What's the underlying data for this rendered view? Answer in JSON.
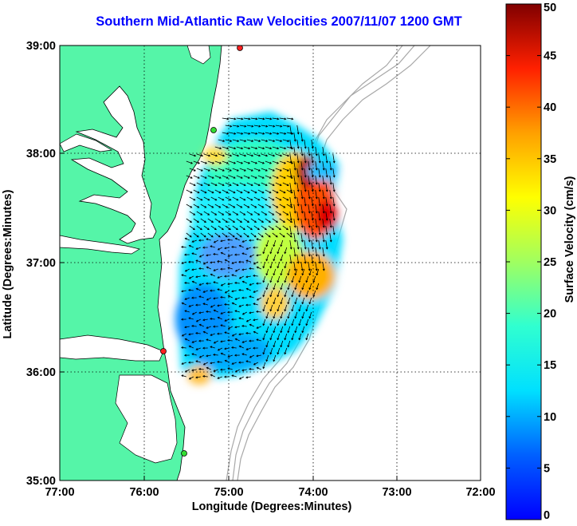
{
  "title": "Southern Mid-Atlantic Raw Velocities 2007/11/07 1200 GMT",
  "xlabel": "Longitude (Degrees:Minutes)",
  "ylabel": "Latitude (Degrees:Minutes)",
  "x_ticks": [
    "77:00",
    "76:00",
    "75:00",
    "74:00",
    "73:00",
    "72:00"
  ],
  "y_ticks": [
    "35:00",
    "36:00",
    "37:00",
    "38:00",
    "39:00"
  ],
  "colorbar": {
    "label": "Surface Velocity (cm/s)",
    "ticks": [
      "0",
      "5",
      "10",
      "15",
      "20",
      "25",
      "30",
      "35",
      "40",
      "45",
      "50"
    ],
    "range": [
      0,
      50
    ]
  },
  "colors": {
    "land": "#55f5a8",
    "title": "#0000ff",
    "bathymetry": "#a8a8a8",
    "station_red": "#ff2020",
    "station_green": "#33dd33"
  }
}
